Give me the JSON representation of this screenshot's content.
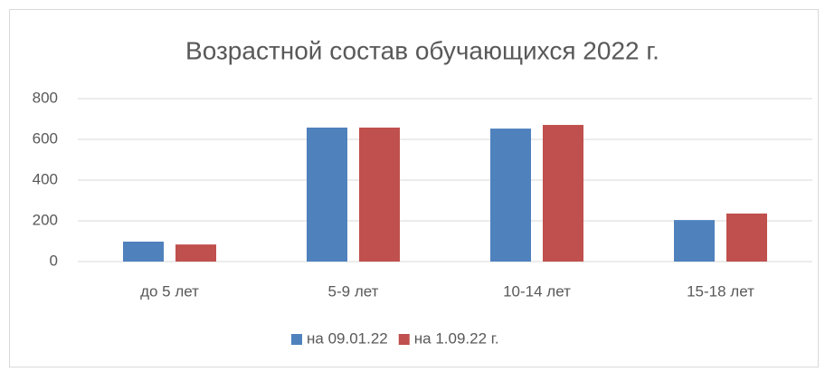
{
  "chart_data": {
    "type": "bar",
    "title": "Возрастной состав обучающихся 2022 г.",
    "categories": [
      "до 5 лет",
      "5-9 лет",
      "10-14 лет",
      "15-18 лет"
    ],
    "series": [
      {
        "name": "на 09.01.22",
        "color": "#4f81bd",
        "values": [
          98,
          658,
          653,
          204
        ]
      },
      {
        "name": "на 1.09.22 г.",
        "color": "#c0504d",
        "values": [
          84,
          658,
          671,
          236
        ]
      }
    ],
    "ylim": [
      0,
      800
    ],
    "yticks": [
      0,
      200,
      400,
      600,
      800
    ],
    "grid": true,
    "legend": "bottom"
  }
}
